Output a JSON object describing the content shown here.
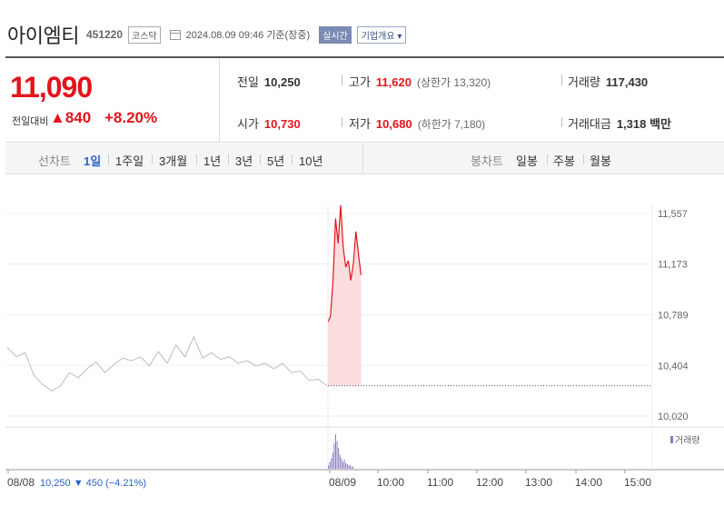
{
  "header": {
    "name": "아이엠티",
    "code": "451220",
    "market": "코스닥",
    "datetime": "2024.08.09 09:46 기준(장중)",
    "realtime_btn": "실시간",
    "overview_btn": "기업개요 ▾"
  },
  "quote": {
    "price": "11,090",
    "diff_label": "전일대비",
    "diff_value": "▲840",
    "diff_rate": "+8.20%",
    "prev_close_label": "전일",
    "prev_close": "10,250",
    "high_label": "고가",
    "high": "11,620",
    "upper_limit": "(상한가 13,320)",
    "volume_label": "거래량",
    "volume": "117,430",
    "open_label": "시가",
    "open": "10,730",
    "low_label": "저가",
    "low": "10,680",
    "lower_limit": "(하한가 7,180)",
    "amount_label": "거래대금",
    "amount": "1,318 백만"
  },
  "tabs": {
    "line_label": "선차트",
    "line_periods": [
      "1일",
      "1주일",
      "3개월",
      "1년",
      "3년",
      "5년",
      "10년"
    ],
    "active_period": "1일",
    "candle_label": "봉차트",
    "candle_periods": [
      "일봉",
      "주봉",
      "월봉"
    ]
  },
  "chart_data": {
    "type": "line",
    "y_ticks": [
      "11,557",
      "11,173",
      "10,789",
      "10,404",
      "10,020"
    ],
    "y_tick_values": [
      11557,
      11173,
      10789,
      10404,
      10020
    ],
    "ylim": [
      10020,
      11557
    ],
    "x_ticks": [
      "08/08",
      "08/09",
      "10:00",
      "11:00",
      "12:00",
      "13:00",
      "14:00",
      "15:00"
    ],
    "prev_close_line": 10250,
    "volume_legend": "거래량",
    "prev_day_caption": {
      "date": "08/08",
      "close": "10,250",
      "change": "▼ 450",
      "rate": "(−4.21%)"
    },
    "series": [
      {
        "session": "08/08",
        "color": "#bbbbbb",
        "values": [
          10540,
          10470,
          10500,
          10330,
          10260,
          10210,
          10250,
          10350,
          10310,
          10380,
          10430,
          10350,
          10410,
          10460,
          10440,
          10470,
          10400,
          10510,
          10420,
          10560,
          10470,
          10620,
          10460,
          10500,
          10450,
          10470,
          10420,
          10440,
          10400,
          10420,
          10380,
          10420,
          10350,
          10360,
          10290,
          10300,
          10250
        ]
      },
      {
        "session": "08/09",
        "color": "#e2141c",
        "values": [
          10730,
          10780,
          11050,
          11520,
          11330,
          11620,
          11300,
          11150,
          11200,
          11050,
          11180,
          11420,
          11250,
          11090
        ]
      }
    ],
    "volume": {
      "session": "08/09",
      "values": [
        3,
        6,
        9,
        14,
        22,
        30,
        24,
        18,
        12,
        9,
        6,
        8,
        5,
        4,
        3,
        3,
        2,
        2
      ]
    }
  },
  "colors": {
    "up": "#e2141c",
    "down": "#2a63c6",
    "prev_day_line": "#bbbbbb",
    "fill": "#fbd4d4",
    "volume": "#8e7cc3"
  }
}
